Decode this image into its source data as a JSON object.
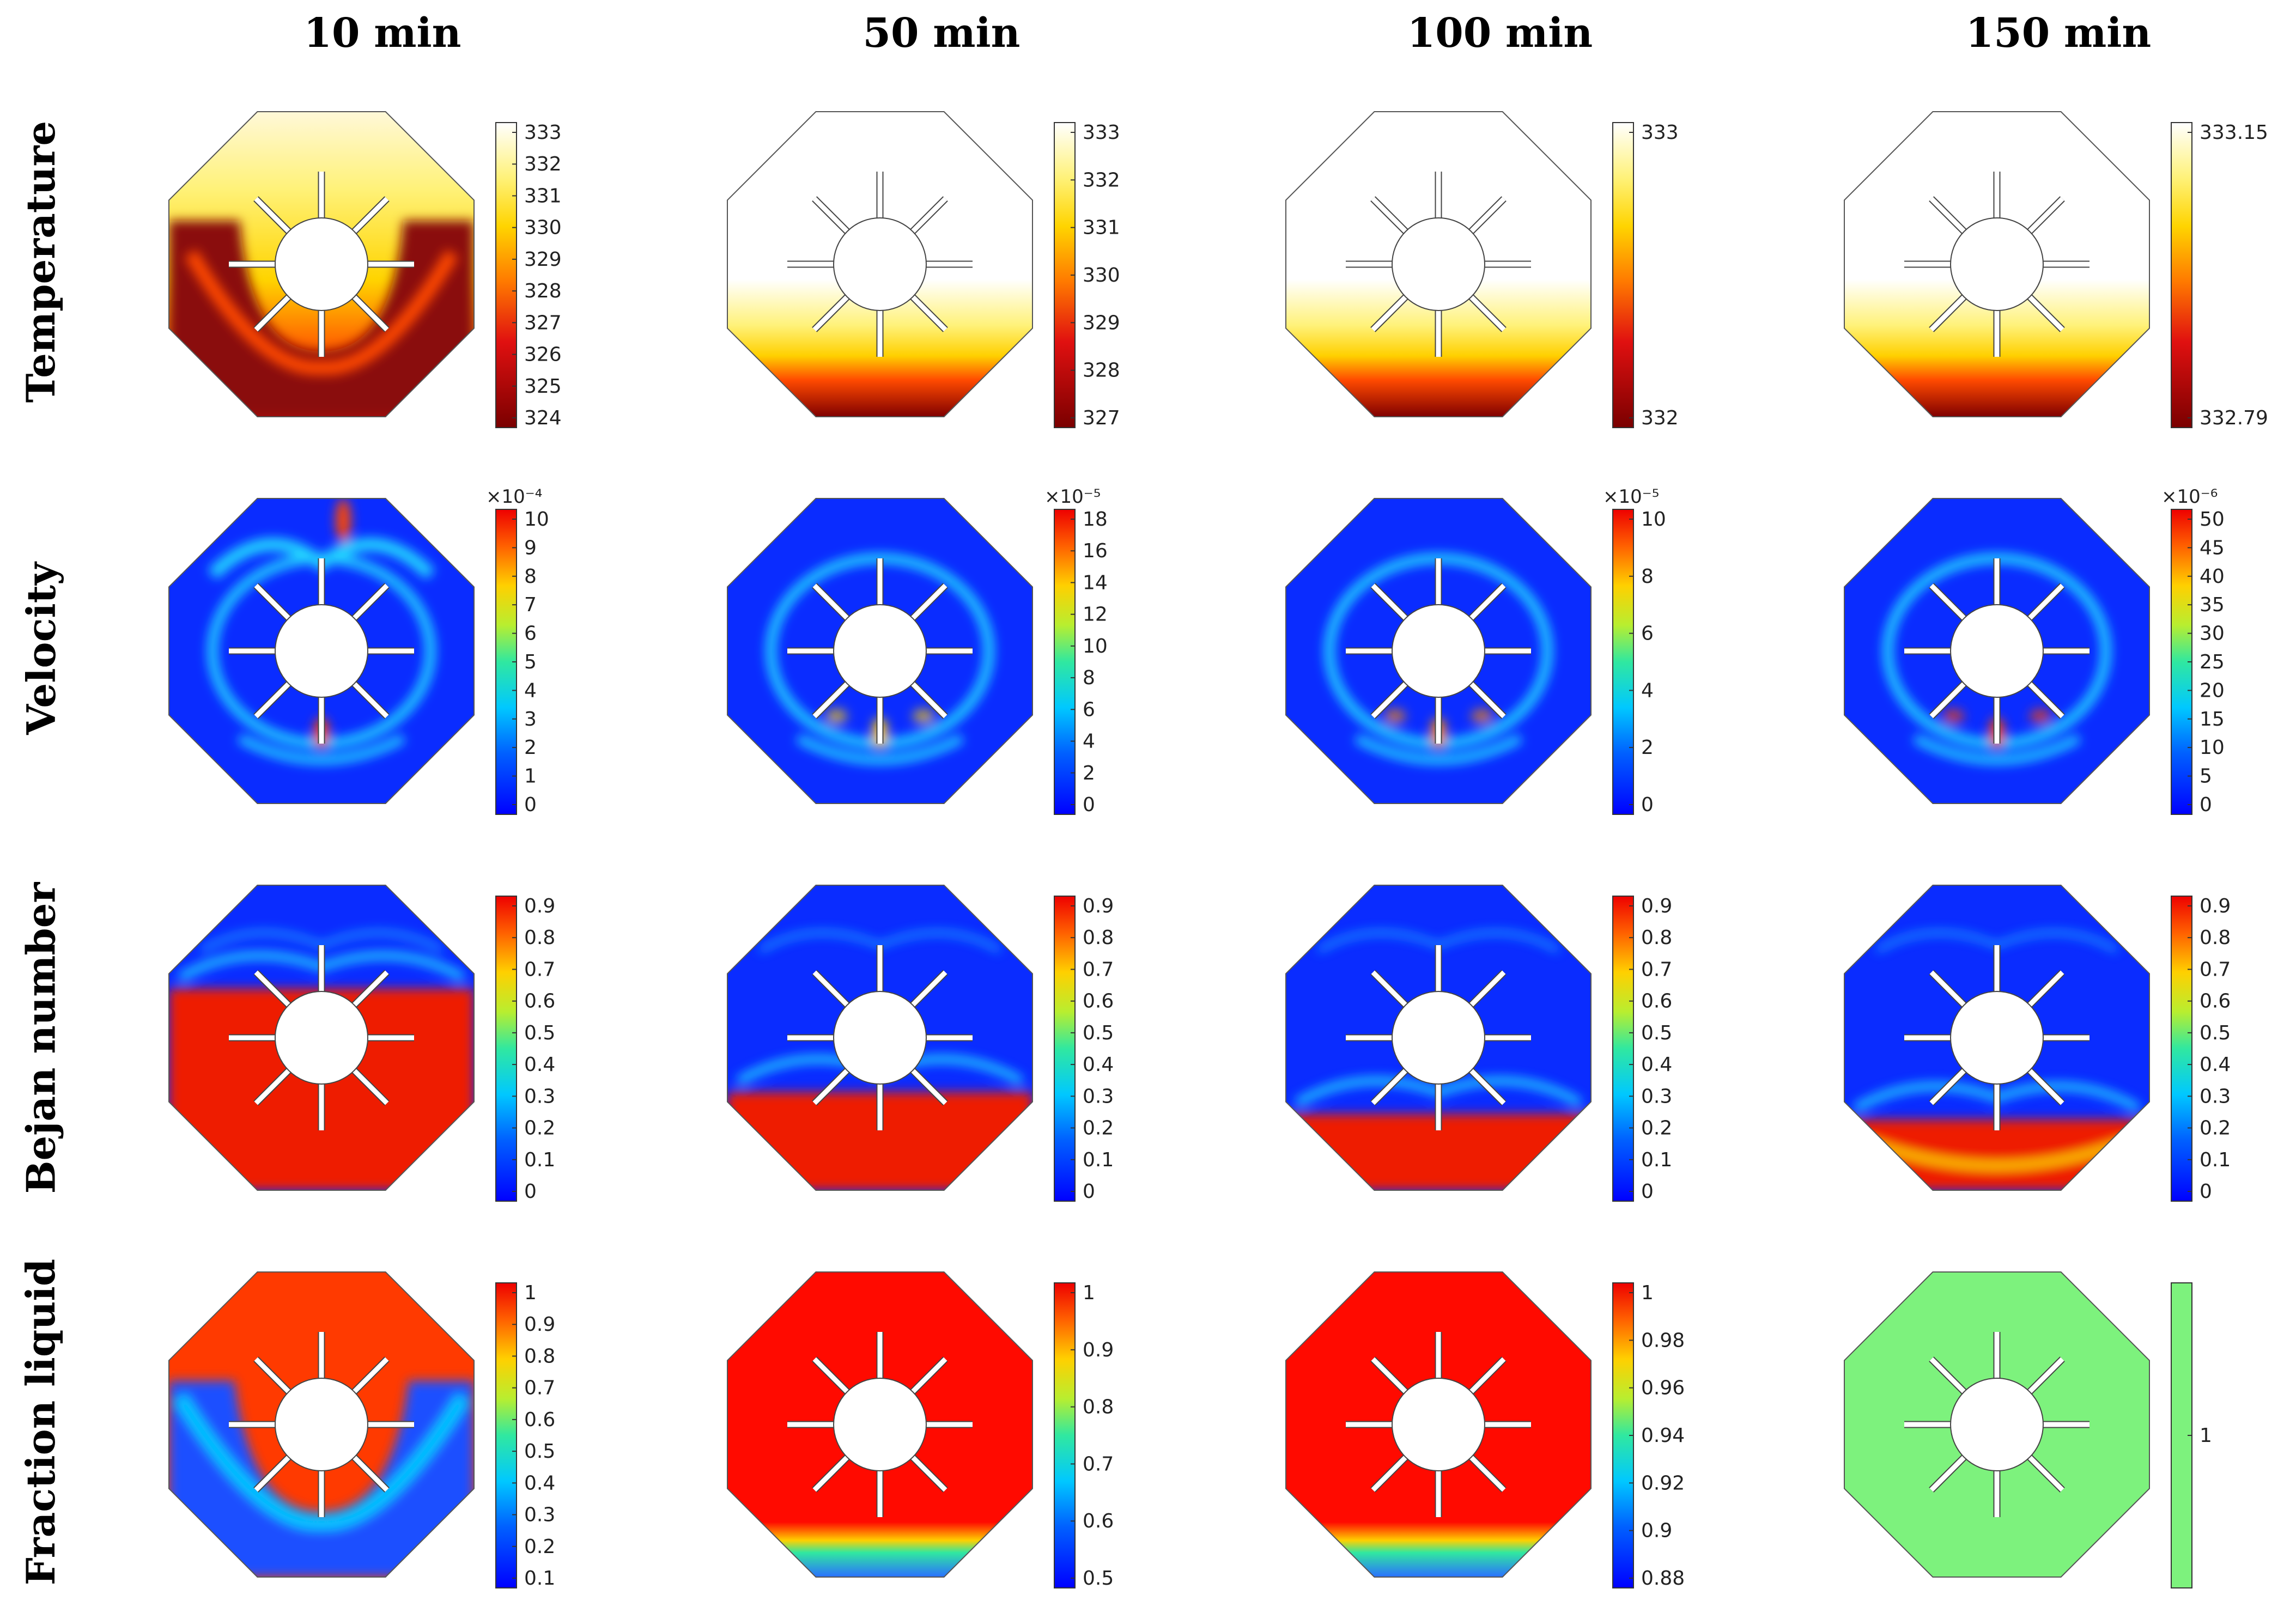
{
  "figure": {
    "columns": [
      "10 min",
      "50 min",
      "100 min",
      "150 min"
    ],
    "rows": [
      {
        "label": "Temperature",
        "panels": [
          {
            "field": "temperature",
            "gradient": [
              [
                0,
                "#7a0000"
              ],
              [
                0.28,
                "#e01010"
              ],
              [
                0.48,
                "#ff7a00"
              ],
              [
                0.66,
                "#ffd400"
              ],
              [
                0.82,
                "#fff27a"
              ],
              [
                1,
                "#ffffff"
              ]
            ],
            "ticks": [
              "324",
              "325",
              "326",
              "327",
              "328",
              "329",
              "330",
              "331",
              "332",
              "333"
            ],
            "exponent": null,
            "colors": {
              "bottom": "#8a0a0a",
              "mid": "#ff5a00",
              "top": "#fff9c8",
              "front": "#ffd400"
            }
          },
          {
            "field": "temperature",
            "gradient": [
              [
                0,
                "#7a0000"
              ],
              [
                0.28,
                "#e01010"
              ],
              [
                0.48,
                "#ff7a00"
              ],
              [
                0.66,
                "#ffd400"
              ],
              [
                0.82,
                "#fff27a"
              ],
              [
                1,
                "#ffffff"
              ]
            ],
            "ticks": [
              "327",
              "328",
              "329",
              "330",
              "331",
              "332",
              "333"
            ],
            "exponent": null,
            "colors": {
              "bottom": "#8a0a0a",
              "mid": "#ff5a00",
              "top": "#ffffff",
              "front": "#ffd400"
            }
          },
          {
            "field": "temperature",
            "gradient": [
              [
                0,
                "#7a0000"
              ],
              [
                0.28,
                "#e01010"
              ],
              [
                0.48,
                "#ff7a00"
              ],
              [
                0.66,
                "#ffd400"
              ],
              [
                0.82,
                "#fff27a"
              ],
              [
                1,
                "#ffffff"
              ]
            ],
            "ticks": [
              "332",
              "333"
            ],
            "exponent": null,
            "colors": {
              "bottom": "#8a0a0a",
              "mid": "#ff5a00",
              "top": "#ffffff",
              "front": "#ffd400"
            }
          },
          {
            "field": "temperature",
            "gradient": [
              [
                0,
                "#7a0000"
              ],
              [
                0.28,
                "#e01010"
              ],
              [
                0.48,
                "#ff7a00"
              ],
              [
                0.66,
                "#ffd400"
              ],
              [
                0.82,
                "#fff27a"
              ],
              [
                1,
                "#ffffff"
              ]
            ],
            "ticks": [
              "332.79",
              "333.15"
            ],
            "exponent": null,
            "colors": {
              "bottom": "#8a0a0a",
              "mid": "#ff5a00",
              "top": "#ffffff",
              "front": "#ffd400"
            }
          }
        ]
      },
      {
        "label": "Velocity",
        "panels": [
          {
            "field": "velocity",
            "gradient": [
              [
                0,
                "#0000ff"
              ],
              [
                0.2,
                "#0060ff"
              ],
              [
                0.35,
                "#00c8ff"
              ],
              [
                0.5,
                "#30e8a0"
              ],
              [
                0.62,
                "#b8ee30"
              ],
              [
                0.75,
                "#ffd000"
              ],
              [
                0.88,
                "#ff6000"
              ],
              [
                1,
                "#ee0000"
              ]
            ],
            "ticks": [
              "0",
              "1",
              "2",
              "3",
              "4",
              "5",
              "6",
              "7",
              "8",
              "9",
              "10"
            ],
            "exponent": "×10⁻⁴",
            "colors": {
              "bg": "#0a2cff",
              "accent": "#22d6ff",
              "hot": "#ff4400"
            }
          },
          {
            "field": "velocity",
            "gradient": [
              [
                0,
                "#0000ff"
              ],
              [
                0.2,
                "#0060ff"
              ],
              [
                0.35,
                "#00c8ff"
              ],
              [
                0.5,
                "#30e8a0"
              ],
              [
                0.62,
                "#b8ee30"
              ],
              [
                0.75,
                "#ffd000"
              ],
              [
                0.88,
                "#ff6000"
              ],
              [
                1,
                "#ee0000"
              ]
            ],
            "ticks": [
              "0",
              "2",
              "4",
              "6",
              "8",
              "10",
              "12",
              "14",
              "16",
              "18"
            ],
            "exponent": "×10⁻⁵",
            "colors": {
              "bg": "#0a2cff",
              "accent": "#22d6ff",
              "hot": "#ffcc00"
            }
          },
          {
            "field": "velocity",
            "gradient": [
              [
                0,
                "#0000ff"
              ],
              [
                0.2,
                "#0060ff"
              ],
              [
                0.35,
                "#00c8ff"
              ],
              [
                0.5,
                "#30e8a0"
              ],
              [
                0.62,
                "#b8ee30"
              ],
              [
                0.75,
                "#ffd000"
              ],
              [
                0.88,
                "#ff6000"
              ],
              [
                1,
                "#ee0000"
              ]
            ],
            "ticks": [
              "0",
              "2",
              "4",
              "6",
              "8",
              "10"
            ],
            "exponent": "×10⁻⁵",
            "colors": {
              "bg": "#0a2cff",
              "accent": "#22d6ff",
              "hot": "#ff8800"
            }
          },
          {
            "field": "velocity",
            "gradient": [
              [
                0,
                "#0000ff"
              ],
              [
                0.2,
                "#0060ff"
              ],
              [
                0.35,
                "#00c8ff"
              ],
              [
                0.5,
                "#30e8a0"
              ],
              [
                0.62,
                "#b8ee30"
              ],
              [
                0.75,
                "#ffd000"
              ],
              [
                0.88,
                "#ff6000"
              ],
              [
                1,
                "#ee0000"
              ]
            ],
            "ticks": [
              "0",
              "5",
              "10",
              "15",
              "20",
              "25",
              "30",
              "35",
              "40",
              "45",
              "50"
            ],
            "exponent": "×10⁻⁶",
            "colors": {
              "bg": "#0a2cff",
              "accent": "#22d6ff",
              "hot": "#ff4400"
            }
          }
        ]
      },
      {
        "label": "Bejan number",
        "panels": [
          {
            "field": "bejan",
            "gradient": [
              [
                0,
                "#0000ff"
              ],
              [
                0.2,
                "#0060ff"
              ],
              [
                0.35,
                "#00c8ff"
              ],
              [
                0.5,
                "#30e8a0"
              ],
              [
                0.62,
                "#b8ee30"
              ],
              [
                0.75,
                "#ffd000"
              ],
              [
                0.88,
                "#ff6000"
              ],
              [
                1,
                "#ee0000"
              ]
            ],
            "ticks": [
              "0",
              "0.1",
              "0.2",
              "0.3",
              "0.4",
              "0.5",
              "0.6",
              "0.7",
              "0.8",
              "0.9"
            ],
            "exponent": null,
            "colors": {
              "bg": "#0a2cff",
              "accent": "#22d6ff",
              "hot": "#ee1a00"
            }
          },
          {
            "field": "bejan",
            "gradient": [
              [
                0,
                "#0000ff"
              ],
              [
                0.2,
                "#0060ff"
              ],
              [
                0.35,
                "#00c8ff"
              ],
              [
                0.5,
                "#30e8a0"
              ],
              [
                0.62,
                "#b8ee30"
              ],
              [
                0.75,
                "#ffd000"
              ],
              [
                0.88,
                "#ff6000"
              ],
              [
                1,
                "#ee0000"
              ]
            ],
            "ticks": [
              "0",
              "0.1",
              "0.2",
              "0.3",
              "0.4",
              "0.5",
              "0.6",
              "0.7",
              "0.8",
              "0.9"
            ],
            "exponent": null,
            "colors": {
              "bg": "#0a2cff",
              "accent": "#22d6ff",
              "hot": "#ee1a00"
            }
          },
          {
            "field": "bejan",
            "gradient": [
              [
                0,
                "#0000ff"
              ],
              [
                0.2,
                "#0060ff"
              ],
              [
                0.35,
                "#00c8ff"
              ],
              [
                0.5,
                "#30e8a0"
              ],
              [
                0.62,
                "#b8ee30"
              ],
              [
                0.75,
                "#ffd000"
              ],
              [
                0.88,
                "#ff6000"
              ],
              [
                1,
                "#ee0000"
              ]
            ],
            "ticks": [
              "0",
              "0.1",
              "0.2",
              "0.3",
              "0.4",
              "0.5",
              "0.6",
              "0.7",
              "0.8",
              "0.9"
            ],
            "exponent": null,
            "colors": {
              "bg": "#0a2cff",
              "accent": "#22d6ff",
              "hot": "#ee1a00"
            }
          },
          {
            "field": "bejan",
            "gradient": [
              [
                0,
                "#0000ff"
              ],
              [
                0.2,
                "#0060ff"
              ],
              [
                0.35,
                "#00c8ff"
              ],
              [
                0.5,
                "#30e8a0"
              ],
              [
                0.62,
                "#b8ee30"
              ],
              [
                0.75,
                "#ffd000"
              ],
              [
                0.88,
                "#ff6000"
              ],
              [
                1,
                "#ee0000"
              ]
            ],
            "ticks": [
              "0",
              "0.1",
              "0.2",
              "0.3",
              "0.4",
              "0.5",
              "0.6",
              "0.7",
              "0.8",
              "0.9"
            ],
            "exponent": null,
            "colors": {
              "bg": "#0a2cff",
              "accent": "#22d6ff",
              "hot": "#ee1a00"
            }
          }
        ]
      },
      {
        "label": "Fraction liquid",
        "panels": [
          {
            "field": "fraction",
            "gradient": [
              [
                0,
                "#0000ff"
              ],
              [
                0.2,
                "#0060ff"
              ],
              [
                0.35,
                "#00c8ff"
              ],
              [
                0.5,
                "#30e8a0"
              ],
              [
                0.62,
                "#b8ee30"
              ],
              [
                0.75,
                "#ffd000"
              ],
              [
                0.88,
                "#ff6000"
              ],
              [
                1,
                "#ee0000"
              ]
            ],
            "ticks": [
              "0.1",
              "0.2",
              "0.3",
              "0.4",
              "0.5",
              "0.6",
              "0.7",
              "0.8",
              "0.9",
              "1"
            ],
            "exponent": null,
            "colors": {
              "top": "#ff3a00",
              "bottom": "#1a50ff",
              "front": "#00c8ff"
            }
          },
          {
            "field": "fraction",
            "gradient": [
              [
                0,
                "#0000ff"
              ],
              [
                0.2,
                "#0060ff"
              ],
              [
                0.35,
                "#00c8ff"
              ],
              [
                0.5,
                "#30e8a0"
              ],
              [
                0.62,
                "#b8ee30"
              ],
              [
                0.75,
                "#ffd000"
              ],
              [
                0.88,
                "#ff6000"
              ],
              [
                1,
                "#ee0000"
              ]
            ],
            "ticks": [
              "0.5",
              "0.6",
              "0.7",
              "0.8",
              "0.9",
              "1"
            ],
            "exponent": null,
            "colors": {
              "top": "#ff0a00",
              "bottom": "#2a70ff",
              "front": "#30e8a0"
            }
          },
          {
            "field": "fraction",
            "gradient": [
              [
                0,
                "#0000ff"
              ],
              [
                0.2,
                "#0060ff"
              ],
              [
                0.35,
                "#00c8ff"
              ],
              [
                0.5,
                "#30e8a0"
              ],
              [
                0.62,
                "#b8ee30"
              ],
              [
                0.75,
                "#ffd000"
              ],
              [
                0.88,
                "#ff6000"
              ],
              [
                1,
                "#ee0000"
              ]
            ],
            "ticks": [
              "0.88",
              "0.9",
              "0.92",
              "0.94",
              "0.96",
              "0.98",
              "1"
            ],
            "exponent": null,
            "colors": {
              "top": "#ff0a00",
              "bottom": "#2a70ff",
              "front": "#30e8a0"
            }
          },
          {
            "field": "fraction",
            "gradient": [
              [
                0,
                "#7df27d"
              ],
              [
                1,
                "#7df27d"
              ]
            ],
            "ticks": [
              "1"
            ],
            "exponent": null,
            "colors": {
              "top": "#7df27d",
              "bottom": "#7df27d",
              "front": "#7df27d"
            }
          }
        ]
      }
    ]
  }
}
